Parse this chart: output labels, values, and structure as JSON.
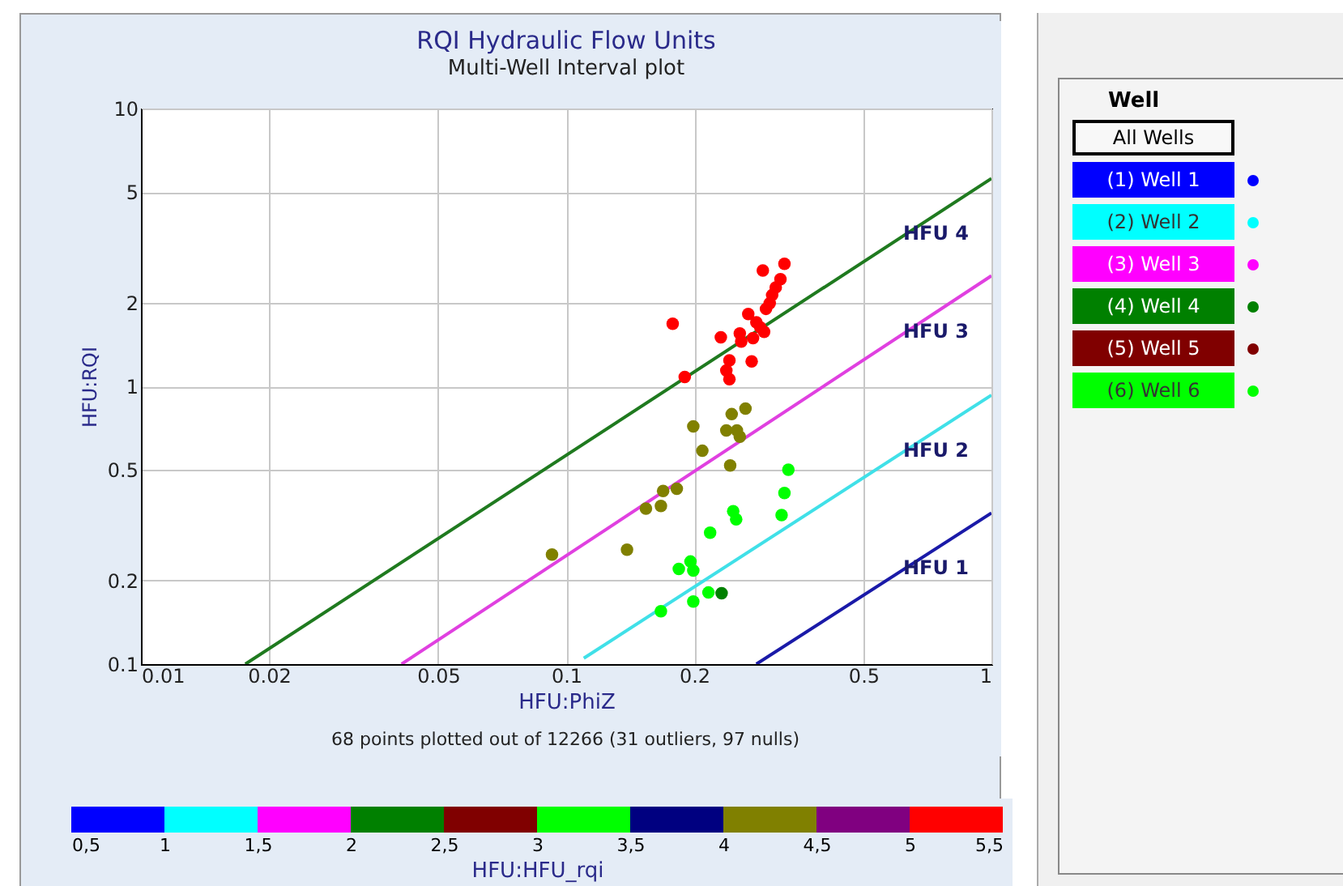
{
  "chart_data": [
    {
      "type": "scatter",
      "title": "RQI Hydraulic Flow Units",
      "subtitle": "Multi-Well Interval plot",
      "xlabel": "HFU:PhiZ",
      "ylabel": "HFU:RQI",
      "annotations": [
        "68 points plotted out of 12266 (31 outliers, 97 nulls)"
      ],
      "log": "xy",
      "grid": true,
      "marker": "circle",
      "xlim": [
        0.01,
        1
      ],
      "xticks": [
        0.01,
        0.02,
        0.05,
        0.1,
        0.2,
        0.5,
        1
      ],
      "ylim": [
        0.1,
        10
      ],
      "yticks": [
        0.1,
        0.2,
        0.5,
        1,
        2,
        5,
        10
      ],
      "x": [
        0.326,
        0.29,
        0.319,
        0.311,
        0.305,
        0.301,
        0.295,
        0.268,
        0.28,
        0.178,
        0.286,
        0.256,
        0.292,
        0.231,
        0.258,
        0.275,
        0.273,
        0.242,
        0.238,
        0.242,
        0.19,
        0.264,
        0.245,
        0.238,
        0.252,
        0.256,
        0.199,
        0.209,
        0.243,
        0.182,
        0.169,
        0.154,
        0.167,
        0.139,
        0.0926,
        0.333,
        0.326,
        0.321,
        0.247,
        0.251,
        0.218,
        0.196,
        0.184,
        0.199,
        0.216,
        0.199,
        0.167,
        0.232
      ],
      "values": [
        2.76,
        2.61,
        2.43,
        2.27,
        2.13,
        1.99,
        1.9,
        1.82,
        1.7,
        1.68,
        1.63,
        1.55,
        1.57,
        1.5,
        1.45,
        1.49,
        1.23,
        1.24,
        1.14,
        1.06,
        1.08,
        0.831,
        0.794,
        0.694,
        0.694,
        0.658,
        0.717,
        0.586,
        0.519,
        0.428,
        0.42,
        0.363,
        0.371,
        0.258,
        0.248,
        0.501,
        0.413,
        0.344,
        0.355,
        0.332,
        0.297,
        0.234,
        0.22,
        0.217,
        0.181,
        0.168,
        0.155,
        0.18
      ],
      "colors": [
        "#ff0000",
        "#ff0000",
        "#ff0000",
        "#ff0000",
        "#ff0000",
        "#ff0000",
        "#ff0000",
        "#ff0000",
        "#ff0000",
        "#ff0000",
        "#ff0000",
        "#ff0000",
        "#ff0000",
        "#ff0000",
        "#ff0000",
        "#ff0000",
        "#ff0000",
        "#ff0000",
        "#ff0000",
        "#ff0000",
        "#ff0000",
        "#808000",
        "#808000",
        "#808000",
        "#808000",
        "#808000",
        "#808000",
        "#808000",
        "#808000",
        "#808000",
        "#808000",
        "#808000",
        "#808000",
        "#808000",
        "#808000",
        "#00ff00",
        "#00ff00",
        "#00ff00",
        "#00ff00",
        "#00ff00",
        "#00ff00",
        "#00ff00",
        "#00ff00",
        "#00ff00",
        "#00ff00",
        "#00ff00",
        "#00ff00",
        "#008000"
      ],
      "series": [
        {
          "type": "line",
          "name": "HFU 4",
          "color": "#1f7a1f",
          "marker": "none",
          "x": [
            0.0176,
            1
          ],
          "values": [
            0.1,
            5.6
          ]
        },
        {
          "type": "line",
          "name": "HFU 3",
          "color": "#e040e0",
          "marker": "none",
          "x": [
            0.041,
            1
          ],
          "values": [
            0.1,
            2.5
          ]
        },
        {
          "type": "line",
          "name": "HFU 2",
          "color": "#40e0e8",
          "marker": "none",
          "x": [
            0.11,
            1
          ],
          "values": [
            0.105,
            0.93
          ]
        },
        {
          "type": "line",
          "name": "HFU 1",
          "color": "#1a1aa8",
          "marker": "none",
          "x": [
            0.28,
            1
          ],
          "values": [
            0.1,
            0.35
          ]
        }
      ]
    },
    {
      "type": "bar",
      "orientation": "horizontal",
      "stacked": true,
      "categories": [
        null
      ],
      "xlabel": "HFU:HFU_rqi",
      "xlim": [
        0.5,
        5.5
      ],
      "xticks": [
        {
          "value": 0.5,
          "label": "0,5"
        },
        1,
        {
          "value": 1.5,
          "label": "1,5"
        },
        2,
        {
          "value": 2.5,
          "label": "2,5"
        },
        3,
        {
          "value": 3.5,
          "label": "3,5"
        },
        4,
        {
          "value": 4.5,
          "label": "4,5"
        },
        5,
        {
          "value": 5.5,
          "label": "5,5"
        }
      ],
      "series": [
        {
          "color": "#0000ff",
          "values": [
            1
          ]
        },
        {
          "color": "#00ffff",
          "values": [
            0.5
          ]
        },
        {
          "color": "#ff00ff",
          "values": [
            0.5
          ]
        },
        {
          "color": "#008000",
          "values": [
            0.5
          ]
        },
        {
          "color": "#800000",
          "values": [
            0.5
          ]
        },
        {
          "color": "#00ff00",
          "values": [
            0.5
          ]
        },
        {
          "color": "#000080",
          "values": [
            0.5
          ]
        },
        {
          "color": "#808000",
          "values": [
            0.5
          ]
        },
        {
          "color": "#800080",
          "values": [
            0.5
          ]
        },
        {
          "color": "#ff0000",
          "values": [
            0.5
          ]
        }
      ]
    },
    {
      "type": "other",
      "title": "Well",
      "categories": [
        "All Wells",
        "(1) Well 1",
        "(2) Well 2",
        "(3) Well 3",
        "(4) Well 4",
        "(5) Well 5",
        "(6) Well 6"
      ],
      "colors": [
        null,
        "#0000ff",
        "#00ffff",
        "#ff00ff",
        "#008000",
        "#800000",
        "#00ff00"
      ]
    }
  ]
}
